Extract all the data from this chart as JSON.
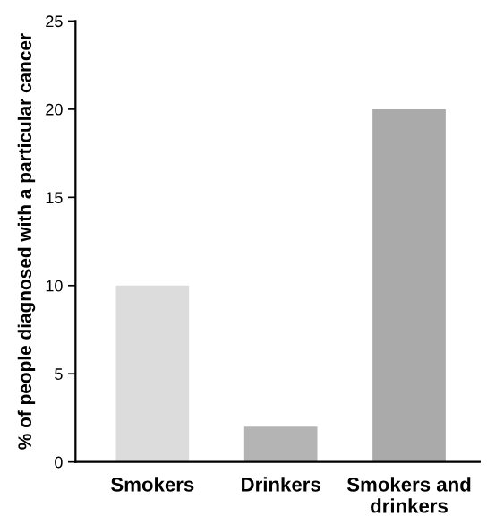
{
  "chart_data": {
    "type": "bar",
    "ylabel": "% of people diagnosed with a particular cancer",
    "categories": [
      "Smokers",
      "Drinkers",
      "Smokers and\ndrinkers"
    ],
    "values": [
      10,
      2,
      20
    ],
    "colors": [
      "#dcdcdc",
      "#b4b4b4",
      "#aaaaaa"
    ],
    "ylim": [
      0,
      25
    ],
    "yticks": [
      0,
      5,
      10,
      15,
      20,
      25
    ],
    "grid": false,
    "legend": false
  }
}
